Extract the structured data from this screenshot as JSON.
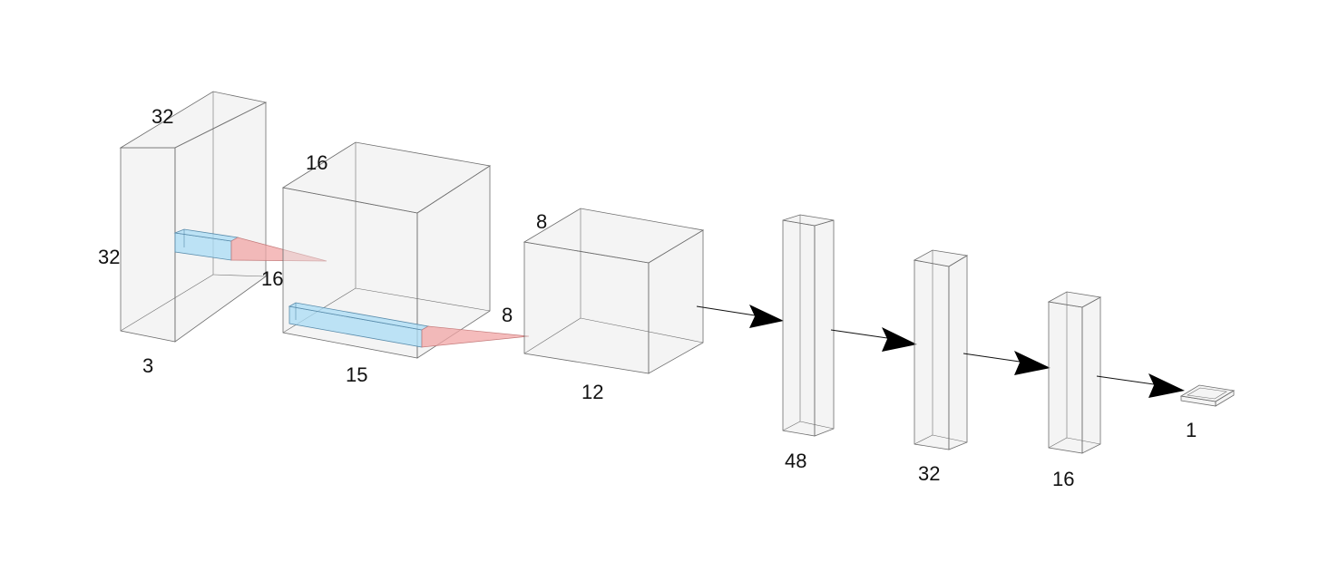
{
  "layers": [
    {
      "height_label": "32",
      "depth_label": "32",
      "width_label": "3"
    },
    {
      "height_label": "16",
      "depth_label": "16",
      "width_label": "15"
    },
    {
      "height_label": "8",
      "depth_label": "8",
      "width_label": "12"
    },
    {
      "width_label": "48"
    },
    {
      "width_label": "32"
    },
    {
      "width_label": "16"
    },
    {
      "width_label": "1"
    }
  ],
  "colors": {
    "block_face": "#e6e6e6",
    "block_edge": "#6d6d6d",
    "kernel": "#a9dcf5",
    "receptive_cone": "#f2a6a6",
    "arrow": "#000000"
  }
}
